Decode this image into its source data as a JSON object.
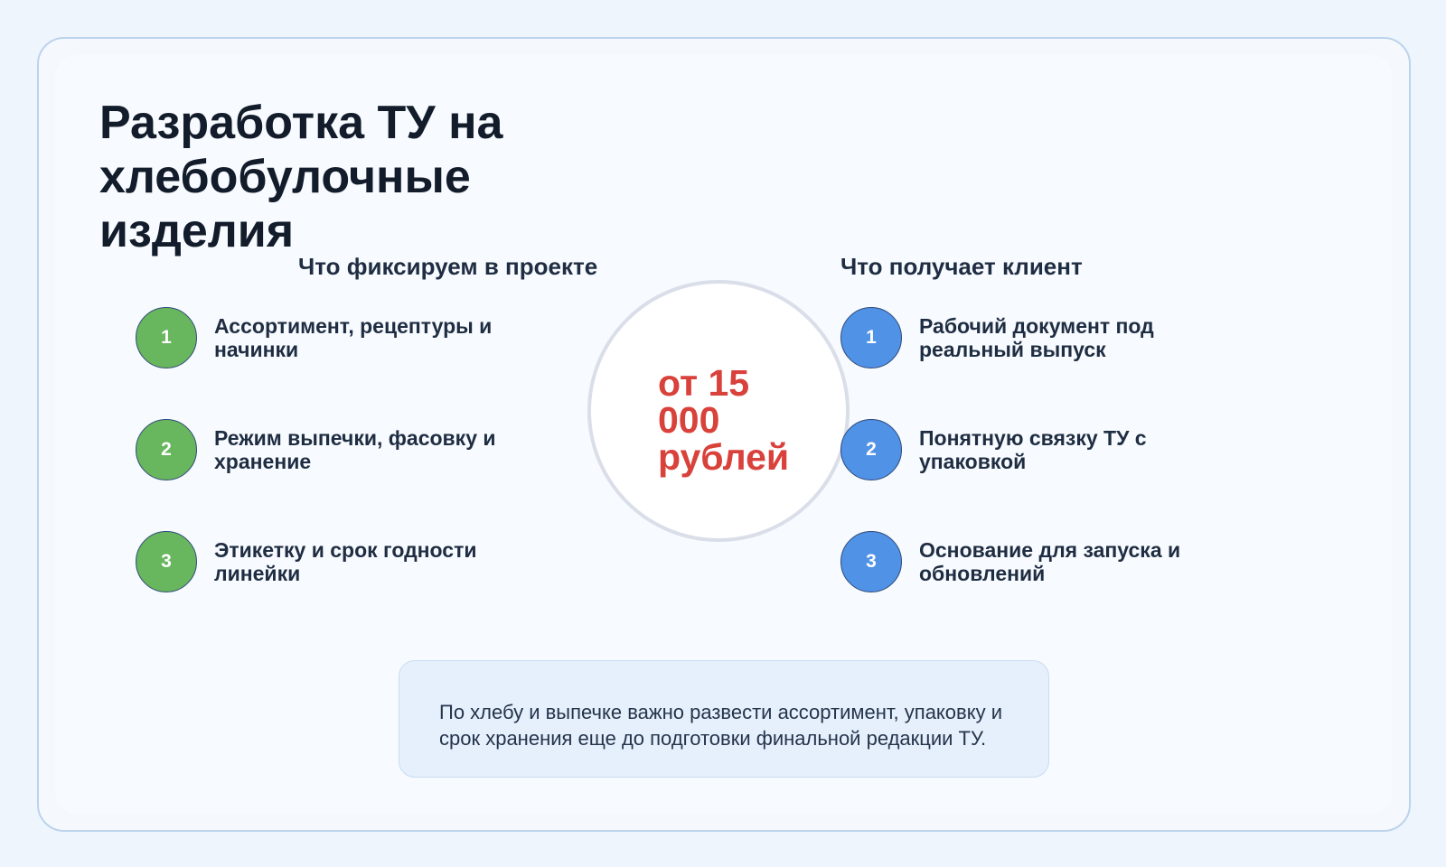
{
  "title": "Разработка ТУ на хлебобулочные изделия",
  "left": {
    "heading": "Что фиксируем в проекте",
    "color": "#68b65e",
    "items": [
      {
        "n": "1",
        "text": "Ассортимент, рецептуры и начинки"
      },
      {
        "n": "2",
        "text": "Режим выпечки, фасовку и хранение"
      },
      {
        "n": "3",
        "text": "Этикетку и срок годности линейки"
      }
    ]
  },
  "right": {
    "heading": "Что получает клиент",
    "color": "#4f92e6",
    "items": [
      {
        "n": "1",
        "text": "Рабочий документ под реальный выпуск"
      },
      {
        "n": "2",
        "text": "Понятную связку ТУ с упаковкой"
      },
      {
        "n": "3",
        "text": "Основание для запуска и обновлений"
      }
    ]
  },
  "price": "от 15 000 рублей",
  "note": "По хлебу и выпечке важно развести ассортимент, упаковку и срок хранения еще до подготовки финальной редакции ТУ."
}
